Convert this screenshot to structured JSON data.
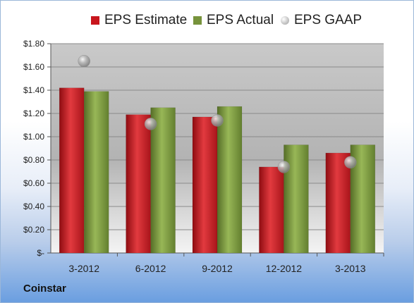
{
  "chart_data": {
    "type": "bar",
    "categories": [
      "3-2012",
      "6-2012",
      "9-2012",
      "12-2012",
      "3-2013"
    ],
    "series": [
      {
        "name": "EPS Estimate",
        "type": "bar",
        "color": "#c8161d",
        "values": [
          1.42,
          1.19,
          1.17,
          0.74,
          0.86
        ]
      },
      {
        "name": "EPS Actual",
        "type": "bar",
        "color": "#77933c",
        "values": [
          1.39,
          1.25,
          1.26,
          0.93,
          0.93
        ]
      },
      {
        "name": "EPS GAAP",
        "type": "scatter",
        "color": "#a6a6a6",
        "values": [
          1.65,
          1.11,
          1.14,
          0.74,
          0.78
        ]
      }
    ],
    "ylim": [
      0,
      1.8
    ],
    "yticks": [
      0,
      0.2,
      0.4,
      0.6,
      0.8,
      1.0,
      1.2,
      1.4,
      1.6,
      1.8
    ],
    "ytick_labels": [
      "$-",
      "$0.20",
      "$0.40",
      "$0.60",
      "$0.80",
      "$1.00",
      "$1.20",
      "$1.40",
      "$1.60",
      "$1.80"
    ],
    "grid": true,
    "legend_position": "top"
  },
  "footer": {
    "company": "Coinstar"
  }
}
